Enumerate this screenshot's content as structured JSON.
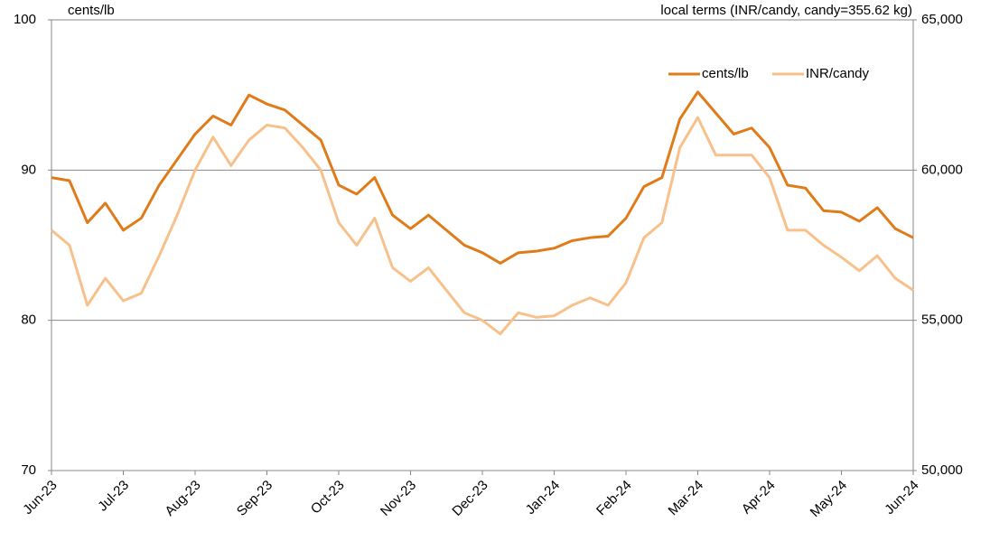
{
  "chart_data": {
    "type": "line",
    "title_left": "cents/lb",
    "title_right": "local terms (INR/candy, candy=355.62 kg)",
    "categories": [
      "Jun-23",
      null,
      null,
      null,
      "Jul-23",
      null,
      null,
      null,
      "Aug-23",
      null,
      null,
      null,
      "Sep-23",
      null,
      null,
      null,
      "Oct-23",
      null,
      null,
      null,
      "Nov-23",
      null,
      null,
      null,
      "Dec-23",
      null,
      null,
      null,
      "Jan-24",
      null,
      null,
      null,
      "Feb-24",
      null,
      null,
      null,
      "Mar-24",
      null,
      null,
      null,
      "Apr-24",
      null,
      null,
      null,
      "May-24",
      null,
      null,
      null,
      "Jun-24"
    ],
    "series": [
      {
        "name": "cents/lb",
        "color": "#e07b1a",
        "values": [
          89.5,
          89.3,
          86.5,
          87.8,
          86.0,
          86.8,
          89.0,
          90.7,
          92.4,
          93.6,
          93.0,
          95.0,
          94.4,
          94.0,
          93.0,
          92.0,
          89.0,
          88.4,
          89.5,
          87.0,
          86.1,
          87.0,
          86.0,
          85.0,
          84.5,
          83.8,
          84.5,
          84.6,
          84.8,
          85.3,
          85.5,
          85.6,
          86.8,
          88.9,
          89.5,
          93.4,
          95.2,
          93.8,
          92.4,
          92.8,
          91.5,
          89.0,
          88.8,
          87.3,
          87.2,
          86.6,
          87.5,
          86.1,
          85.5
        ]
      },
      {
        "name": "INR/candy",
        "color": "#f8c08a",
        "axis": "y2",
        "values": [
          58000,
          57500,
          55500,
          56400,
          55650,
          55900,
          57150,
          58500,
          60000,
          61100,
          60150,
          61000,
          61500,
          61400,
          60750,
          60000,
          58250,
          57500,
          58400,
          56750,
          56300,
          56750,
          56000,
          55250,
          55000,
          54550,
          55250,
          55100,
          55150,
          55500,
          55750,
          55500,
          56250,
          57750,
          58250,
          60750,
          61750,
          60500,
          60500,
          60500,
          59750,
          58000,
          58000,
          57500,
          57100,
          56650,
          57150,
          56400,
          56000
        ]
      }
    ],
    "ylim": [
      70,
      100
    ],
    "yticks": [
      70,
      80,
      90,
      100
    ],
    "y2lim": [
      50000,
      65000
    ],
    "y2ticks": [
      {
        "value": 50000,
        "label": "50,000"
      },
      {
        "value": 55000,
        "label": "55,000"
      },
      {
        "value": 60000,
        "label": "60,000"
      },
      {
        "value": 65000,
        "label": "65,000"
      }
    ],
    "grid": true,
    "legend": "upper right"
  }
}
